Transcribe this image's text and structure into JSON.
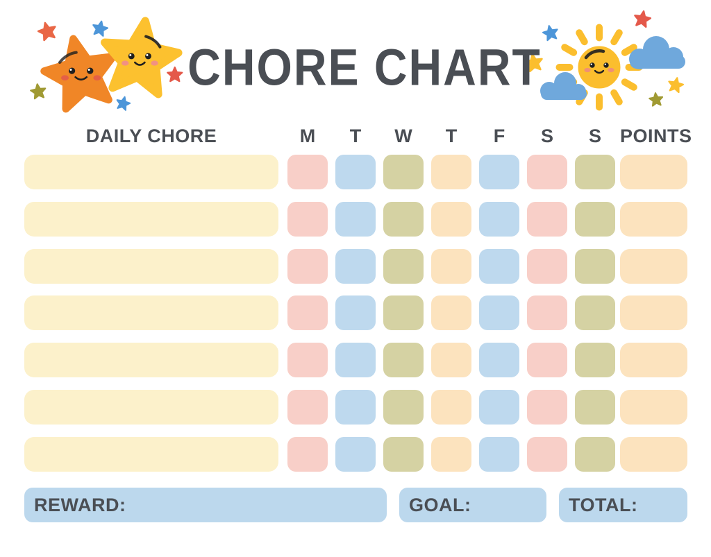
{
  "title": "CHORE CHART",
  "header": {
    "daily_chore": "DAILY CHORE",
    "days": [
      "M",
      "T",
      "W",
      "T",
      "F",
      "S",
      "S"
    ],
    "points": "POINTS"
  },
  "grid": {
    "row_count": 7,
    "chore_color": "cream",
    "day_colors": [
      "pink",
      "blue",
      "olive",
      "peach",
      "blue",
      "pink",
      "olive"
    ],
    "points_color": "peach"
  },
  "footer": {
    "reward": "REWARD:",
    "goal": "GOAL:",
    "total": "TOTAL:"
  },
  "palette": {
    "text": "#4A4E54",
    "cream": "#FCF1CB",
    "pink": "#F8CFC8",
    "blue": "#BED9EE",
    "olive": "#D5D2A3",
    "peach": "#FCE3BE",
    "footer_blue": "#BCD8ED",
    "star_orange": "#F08627",
    "star_yellow": "#FCC12F",
    "accent_red": "#E4594A",
    "accent_orange_red": "#E96746",
    "accent_blue": "#4D96D9",
    "accent_olive": "#A09A33",
    "sun_yellow": "#FBBE2E",
    "sun_highlight": "#FDD565",
    "cloud_blue": "#6FA8DC",
    "cheek_pink": "#EE8B7C"
  },
  "decorations": {
    "left": "two-smiling-stars",
    "right": "smiling-sun-with-clouds"
  }
}
